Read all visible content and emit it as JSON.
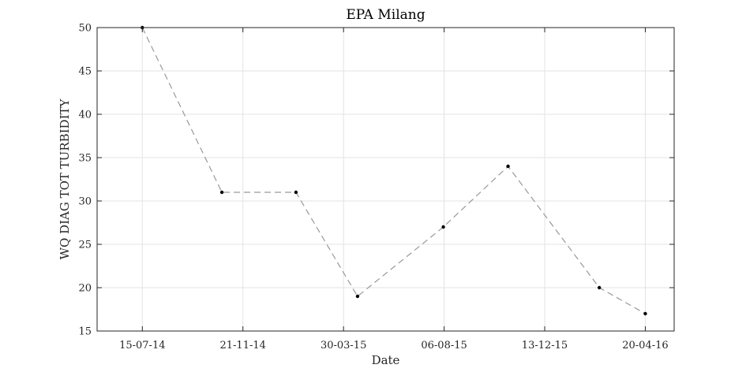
{
  "chart_data": {
    "type": "line",
    "title": "EPA Milang",
    "xlabel": "Date",
    "ylabel": "WQ DIAG TOT TURBIDITY",
    "xlim": [
      "2014-05-18",
      "2016-05-27"
    ],
    "ylim": [
      15,
      50
    ],
    "yticks": [
      15,
      20,
      25,
      30,
      35,
      40,
      45,
      50
    ],
    "xticks": [
      {
        "date": "2014-07-15",
        "label": "15-07-14"
      },
      {
        "date": "2014-11-21",
        "label": "21-11-14"
      },
      {
        "date": "2015-03-30",
        "label": "30-03-15"
      },
      {
        "date": "2015-08-06",
        "label": "06-08-15"
      },
      {
        "date": "2015-12-13",
        "label": "13-12-15"
      },
      {
        "date": "2016-04-20",
        "label": "20-04-16"
      }
    ],
    "grid": true,
    "series": [
      {
        "x": [
          "2014-07-15",
          "2014-10-25",
          "2015-01-28",
          "2015-04-17",
          "2015-08-05",
          "2015-10-27",
          "2016-02-21",
          "2016-04-20"
        ],
        "y": [
          50,
          31,
          31,
          19,
          27,
          34,
          20,
          17
        ],
        "color": "#999999",
        "line_style": "dashed",
        "marker_color": "#000000"
      }
    ]
  }
}
